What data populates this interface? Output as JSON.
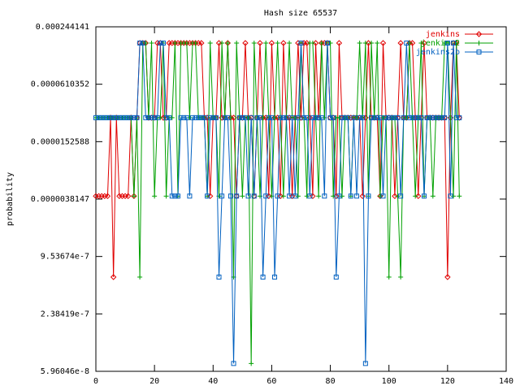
{
  "chart_data": {
    "type": "line",
    "title": "Hash size 65537",
    "y_label": "probability",
    "log_y": true,
    "legend_position": "upper right",
    "xlim": [
      0,
      140
    ],
    "xticks": [
      0,
      20,
      40,
      60,
      80,
      100,
      120,
      140
    ],
    "ylim": [
      5.96046e-08,
      0.000244141
    ],
    "yticks": [
      5.96046e-08,
      2.38419e-07,
      9.53674e-07,
      3.8147e-06,
      1.52588e-05,
      6.10352e-05,
      0.000244141
    ],
    "x": [
      0,
      1,
      2,
      3,
      4,
      5,
      6,
      7,
      8,
      9,
      10,
      11,
      12,
      13,
      14,
      15,
      16,
      17,
      18,
      19,
      20,
      21,
      22,
      23,
      24,
      25,
      26,
      27,
      28,
      29,
      30,
      31,
      32,
      33,
      34,
      35,
      36,
      37,
      38,
      39,
      40,
      41,
      42,
      43,
      44,
      45,
      46,
      47,
      48,
      49,
      50,
      51,
      52,
      53,
      54,
      55,
      56,
      57,
      58,
      59,
      60,
      61,
      62,
      63,
      64,
      65,
      66,
      67,
      68,
      69,
      70,
      71,
      72,
      73,
      74,
      75,
      76,
      77,
      78,
      79,
      80,
      81,
      82,
      83,
      84,
      85,
      86,
      87,
      88,
      89,
      90,
      91,
      92,
      93,
      94,
      95,
      96,
      97,
      98,
      99,
      100,
      101,
      102,
      103,
      104,
      105,
      106,
      107,
      108,
      109,
      110,
      111,
      112,
      113,
      114,
      115,
      116,
      117,
      118,
      119,
      120,
      121,
      122,
      123,
      124
    ],
    "series": [
      {
        "name": "jenkins",
        "color": "#e00000",
        "marker": "diamond",
        "values": [
          4.1e-06,
          4.1e-06,
          4.1e-06,
          4.1e-06,
          4.1e-06,
          2.72e-05,
          5.8e-07,
          2.72e-05,
          4.1e-06,
          4.1e-06,
          4.1e-06,
          4.1e-06,
          2.72e-05,
          4.1e-06,
          2.72e-05,
          0.000165,
          0.000165,
          0.000165,
          2.72e-05,
          2.72e-05,
          2.72e-05,
          0.000165,
          0.000165,
          2.72e-05,
          2.72e-05,
          0.000165,
          0.000165,
          0.000165,
          0.000165,
          0.000165,
          0.000165,
          0.000165,
          0.000165,
          0.000165,
          0.000165,
          0.000165,
          0.000165,
          2.72e-05,
          2.72e-05,
          4.1e-06,
          2.72e-05,
          2.72e-05,
          0.000165,
          2.72e-05,
          2.72e-05,
          0.000165,
          2.72e-05,
          2.72e-05,
          4.1e-06,
          2.72e-05,
          2.72e-05,
          0.000165,
          2.72e-05,
          2.72e-05,
          4.1e-06,
          2.72e-05,
          0.000165,
          2.72e-05,
          2.72e-05,
          4.1e-06,
          0.000165,
          2.72e-05,
          2.72e-05,
          4.1e-06,
          0.000165,
          2.72e-05,
          2.72e-05,
          4.1e-06,
          2.72e-05,
          0.000165,
          2.72e-05,
          0.000165,
          0.000165,
          2.72e-05,
          4.1e-06,
          0.000165,
          2.72e-05,
          0.000165,
          0.000165,
          0.000165,
          2.72e-05,
          2.72e-05,
          4.1e-06,
          0.000165,
          2.72e-05,
          2.72e-05,
          2.72e-05,
          2.72e-05,
          2.72e-05,
          2.72e-05,
          2.72e-05,
          4.1e-06,
          2.72e-05,
          0.000165,
          2.72e-05,
          2.72e-05,
          2.72e-05,
          4.1e-06,
          0.000165,
          2.72e-05,
          2.72e-05,
          2.72e-05,
          4.1e-06,
          2.72e-05,
          0.000165,
          2.72e-05,
          2.72e-05,
          0.000165,
          0.000165,
          2.72e-05,
          4.1e-06,
          2.72e-05,
          0.000165,
          2.72e-05,
          2.72e-05,
          2.72e-05,
          2.72e-05,
          2.72e-05,
          2.72e-05,
          2.72e-05,
          5.8e-07,
          2.72e-05,
          0.000165,
          0.000165,
          2.72e-05
        ]
      },
      {
        "name": "jenkins2",
        "color": "#00a000",
        "marker": "plus",
        "values": [
          2.72e-05,
          2.72e-05,
          2.72e-05,
          2.72e-05,
          2.72e-05,
          2.72e-05,
          2.72e-05,
          2.72e-05,
          2.72e-05,
          2.72e-05,
          2.72e-05,
          2.72e-05,
          2.72e-05,
          4.1e-06,
          2.72e-05,
          5.8e-07,
          0.000165,
          0.000165,
          2.72e-05,
          0.000165,
          4.1e-06,
          2.72e-05,
          2.72e-05,
          0.000165,
          4.1e-06,
          2.72e-05,
          2.72e-05,
          0.000165,
          4.1e-06,
          0.000165,
          0.000165,
          0.000165,
          2.72e-05,
          0.000165,
          0.000165,
          2.72e-05,
          2.72e-05,
          2.72e-05,
          4.1e-06,
          0.000165,
          2.72e-05,
          2.72e-05,
          4.1e-06,
          0.000165,
          2.72e-05,
          0.000165,
          2.72e-05,
          5.8e-07,
          0.000165,
          2.72e-05,
          4.1e-06,
          2.72e-05,
          2.72e-05,
          7.2e-08,
          0.000165,
          2.72e-05,
          4.1e-06,
          2.72e-05,
          0.000165,
          2.72e-05,
          4.1e-06,
          2.72e-05,
          0.000165,
          2.72e-05,
          4.1e-06,
          2.72e-05,
          0.000165,
          2.72e-05,
          2.72e-05,
          4.1e-06,
          0.000165,
          2.72e-05,
          4.1e-06,
          0.000165,
          0.000165,
          2.72e-05,
          4.1e-06,
          0.000165,
          2.72e-05,
          0.000165,
          0.000165,
          4.1e-06,
          2.72e-05,
          2.72e-05,
          4.1e-06,
          2.72e-05,
          2.72e-05,
          4.1e-06,
          2.72e-05,
          2.72e-05,
          0.000165,
          2.72e-05,
          0.000165,
          4.1e-06,
          0.000165,
          2.72e-05,
          0.000165,
          4.1e-06,
          2.72e-05,
          2.72e-05,
          5.8e-07,
          2.72e-05,
          2.72e-05,
          4.1e-06,
          5.8e-07,
          2.72e-05,
          2.72e-05,
          0.000165,
          2.72e-05,
          4.1e-06,
          2.72e-05,
          0.000165,
          4.1e-06,
          2.72e-05,
          2.72e-05,
          4.1e-06,
          2.72e-05,
          2.72e-05,
          2.72e-05,
          0.000165,
          0.000165,
          2.72e-05,
          4.1e-06,
          0.000165,
          4.1e-06
        ]
      },
      {
        "name": "jenkins2b",
        "color": "#0060c0",
        "marker": "square",
        "values": [
          2.72e-05,
          2.72e-05,
          2.72e-05,
          2.72e-05,
          2.72e-05,
          2.72e-05,
          2.72e-05,
          2.72e-05,
          2.72e-05,
          2.72e-05,
          2.72e-05,
          2.72e-05,
          2.72e-05,
          2.72e-05,
          2.72e-05,
          0.000165,
          0.000165,
          2.72e-05,
          2.72e-05,
          2.72e-05,
          2.72e-05,
          2.72e-05,
          0.000165,
          0.000165,
          2.72e-05,
          2.72e-05,
          4.1e-06,
          4.1e-06,
          4.1e-06,
          2.72e-05,
          2.72e-05,
          2.72e-05,
          4.1e-06,
          2.72e-05,
          2.72e-05,
          2.72e-05,
          2.72e-05,
          2.72e-05,
          4.1e-06,
          2.72e-05,
          2.72e-05,
          2.72e-05,
          5.8e-07,
          4.1e-06,
          2.72e-05,
          2.72e-05,
          4.1e-06,
          7.2e-08,
          4.1e-06,
          2.72e-05,
          2.72e-05,
          2.72e-05,
          4.1e-06,
          2.72e-05,
          4.1e-06,
          2.72e-05,
          2.72e-05,
          5.8e-07,
          4.1e-06,
          2.72e-05,
          2.72e-05,
          5.8e-07,
          4.1e-06,
          2.72e-05,
          2.72e-05,
          2.72e-05,
          4.1e-06,
          2.72e-05,
          4.1e-06,
          2.72e-05,
          0.000165,
          2.72e-05,
          2.72e-05,
          4.1e-06,
          2.72e-05,
          2.72e-05,
          2.72e-05,
          2.72e-05,
          4.1e-06,
          0.000165,
          2.72e-05,
          2.72e-05,
          5.8e-07,
          4.1e-06,
          2.72e-05,
          2.72e-05,
          2.72e-05,
          4.1e-06,
          2.72e-05,
          4.1e-06,
          2.72e-05,
          2.72e-05,
          7.2e-08,
          4.1e-06,
          2.72e-05,
          2.72e-05,
          2.72e-05,
          2.72e-05,
          4.1e-06,
          2.72e-05,
          2.72e-05,
          2.72e-05,
          2.72e-05,
          2.72e-05,
          4.1e-06,
          2.72e-05,
          0.000165,
          2.72e-05,
          2.72e-05,
          2.72e-05,
          2.72e-05,
          2.72e-05,
          4.1e-06,
          2.72e-05,
          2.72e-05,
          2.72e-05,
          2.72e-05,
          2.72e-05,
          2.72e-05,
          2.72e-05,
          0.000165,
          4.1e-06,
          0.000165,
          2.72e-05,
          2.72e-05
        ]
      }
    ]
  }
}
